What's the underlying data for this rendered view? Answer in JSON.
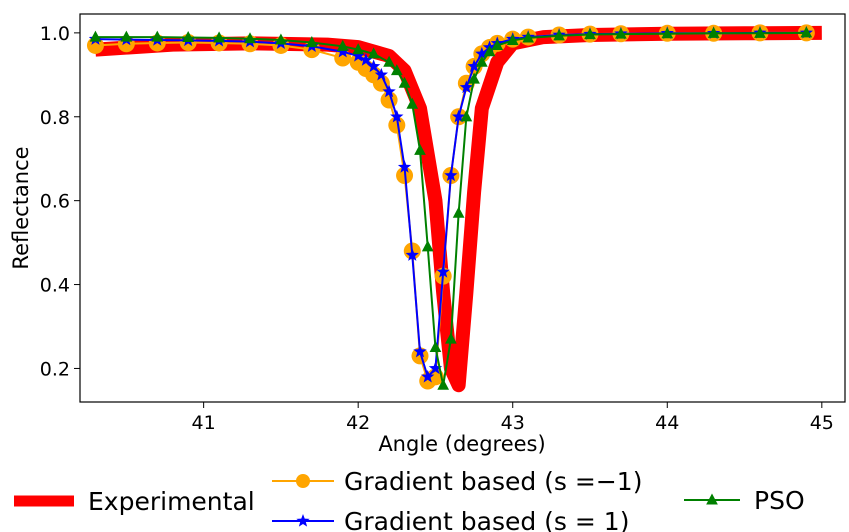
{
  "chart_data": {
    "type": "line",
    "xlabel": "Angle (degrees)",
    "ylabel": "Reflectance",
    "xlim": [
      40.2,
      45.15
    ],
    "ylim": [
      0.12,
      1.045
    ],
    "xticks": [
      "41",
      "42",
      "43",
      "44",
      "45"
    ],
    "yticks": [
      "0.2",
      "0.4",
      "0.6",
      "0.8",
      "1.0"
    ],
    "grid": false,
    "legend_position": "bottom",
    "series": [
      {
        "name": "Experimental",
        "color": "#ff0000",
        "style": "thick-line",
        "x": [
          40.3,
          40.8,
          41.3,
          41.8,
          42.0,
          42.2,
          42.3,
          42.4,
          42.5,
          42.55,
          42.6,
          42.65,
          42.7,
          42.75,
          42.8,
          42.9,
          43.0,
          43.2,
          43.5,
          44.0,
          44.5,
          45.0
        ],
        "y": [
          0.96,
          0.972,
          0.975,
          0.972,
          0.966,
          0.945,
          0.91,
          0.82,
          0.6,
          0.38,
          0.2,
          0.16,
          0.38,
          0.62,
          0.82,
          0.93,
          0.975,
          0.99,
          0.995,
          0.998,
          0.999,
          1.0
        ]
      },
      {
        "name": "Gradient based (s =−1)",
        "color": "#ffa500",
        "marker": "circle",
        "x": [
          40.3,
          40.5,
          40.7,
          40.9,
          41.1,
          41.3,
          41.5,
          41.7,
          41.9,
          42.0,
          42.05,
          42.1,
          42.15,
          42.2,
          42.25,
          42.3,
          42.35,
          42.4,
          42.45,
          42.5,
          42.55,
          42.6,
          42.65,
          42.7,
          42.75,
          42.8,
          42.85,
          42.9,
          43.0,
          43.1,
          43.3,
          43.5,
          43.7,
          44.0,
          44.3,
          44.6,
          44.9
        ],
        "y": [
          0.97,
          0.974,
          0.976,
          0.977,
          0.976,
          0.974,
          0.97,
          0.96,
          0.94,
          0.93,
          0.915,
          0.9,
          0.88,
          0.84,
          0.78,
          0.66,
          0.48,
          0.23,
          0.17,
          0.18,
          0.42,
          0.66,
          0.8,
          0.88,
          0.92,
          0.95,
          0.965,
          0.975,
          0.985,
          0.99,
          0.995,
          0.997,
          0.998,
          0.999,
          0.999,
          1.0,
          1.0
        ]
      },
      {
        "name": "Gradient based (s = 1)",
        "color": "#0000ff",
        "marker": "star",
        "x": [
          40.3,
          40.5,
          40.7,
          40.9,
          41.1,
          41.3,
          41.5,
          41.7,
          41.9,
          42.0,
          42.05,
          42.1,
          42.15,
          42.2,
          42.25,
          42.3,
          42.35,
          42.4,
          42.45,
          42.5,
          42.55,
          42.6,
          42.65,
          42.7,
          42.75,
          42.8,
          42.85,
          42.9,
          43.0,
          43.1,
          43.3,
          43.5,
          43.7,
          44.0,
          44.3,
          44.6,
          44.9
        ],
        "y": [
          0.985,
          0.984,
          0.983,
          0.982,
          0.981,
          0.979,
          0.975,
          0.968,
          0.955,
          0.945,
          0.935,
          0.92,
          0.9,
          0.86,
          0.8,
          0.68,
          0.47,
          0.24,
          0.18,
          0.2,
          0.43,
          0.66,
          0.8,
          0.87,
          0.92,
          0.95,
          0.965,
          0.975,
          0.985,
          0.99,
          0.995,
          0.997,
          0.998,
          0.999,
          0.999,
          1.0,
          1.0
        ]
      },
      {
        "name": "PSO",
        "color": "#008000",
        "marker": "triangle",
        "x": [
          40.3,
          40.5,
          40.7,
          40.9,
          41.1,
          41.3,
          41.5,
          41.7,
          41.9,
          42.0,
          42.1,
          42.2,
          42.25,
          42.3,
          42.35,
          42.4,
          42.45,
          42.5,
          42.55,
          42.6,
          42.65,
          42.7,
          42.75,
          42.8,
          42.85,
          42.9,
          43.0,
          43.1,
          43.3,
          43.5,
          43.7,
          44.0,
          44.3,
          44.6,
          44.9
        ],
        "y": [
          0.99,
          0.99,
          0.99,
          0.989,
          0.988,
          0.986,
          0.983,
          0.977,
          0.968,
          0.96,
          0.95,
          0.93,
          0.91,
          0.88,
          0.83,
          0.72,
          0.49,
          0.25,
          0.16,
          0.27,
          0.57,
          0.8,
          0.89,
          0.93,
          0.955,
          0.97,
          0.982,
          0.988,
          0.993,
          0.996,
          0.997,
          0.998,
          0.999,
          0.999,
          1.0
        ]
      }
    ]
  }
}
